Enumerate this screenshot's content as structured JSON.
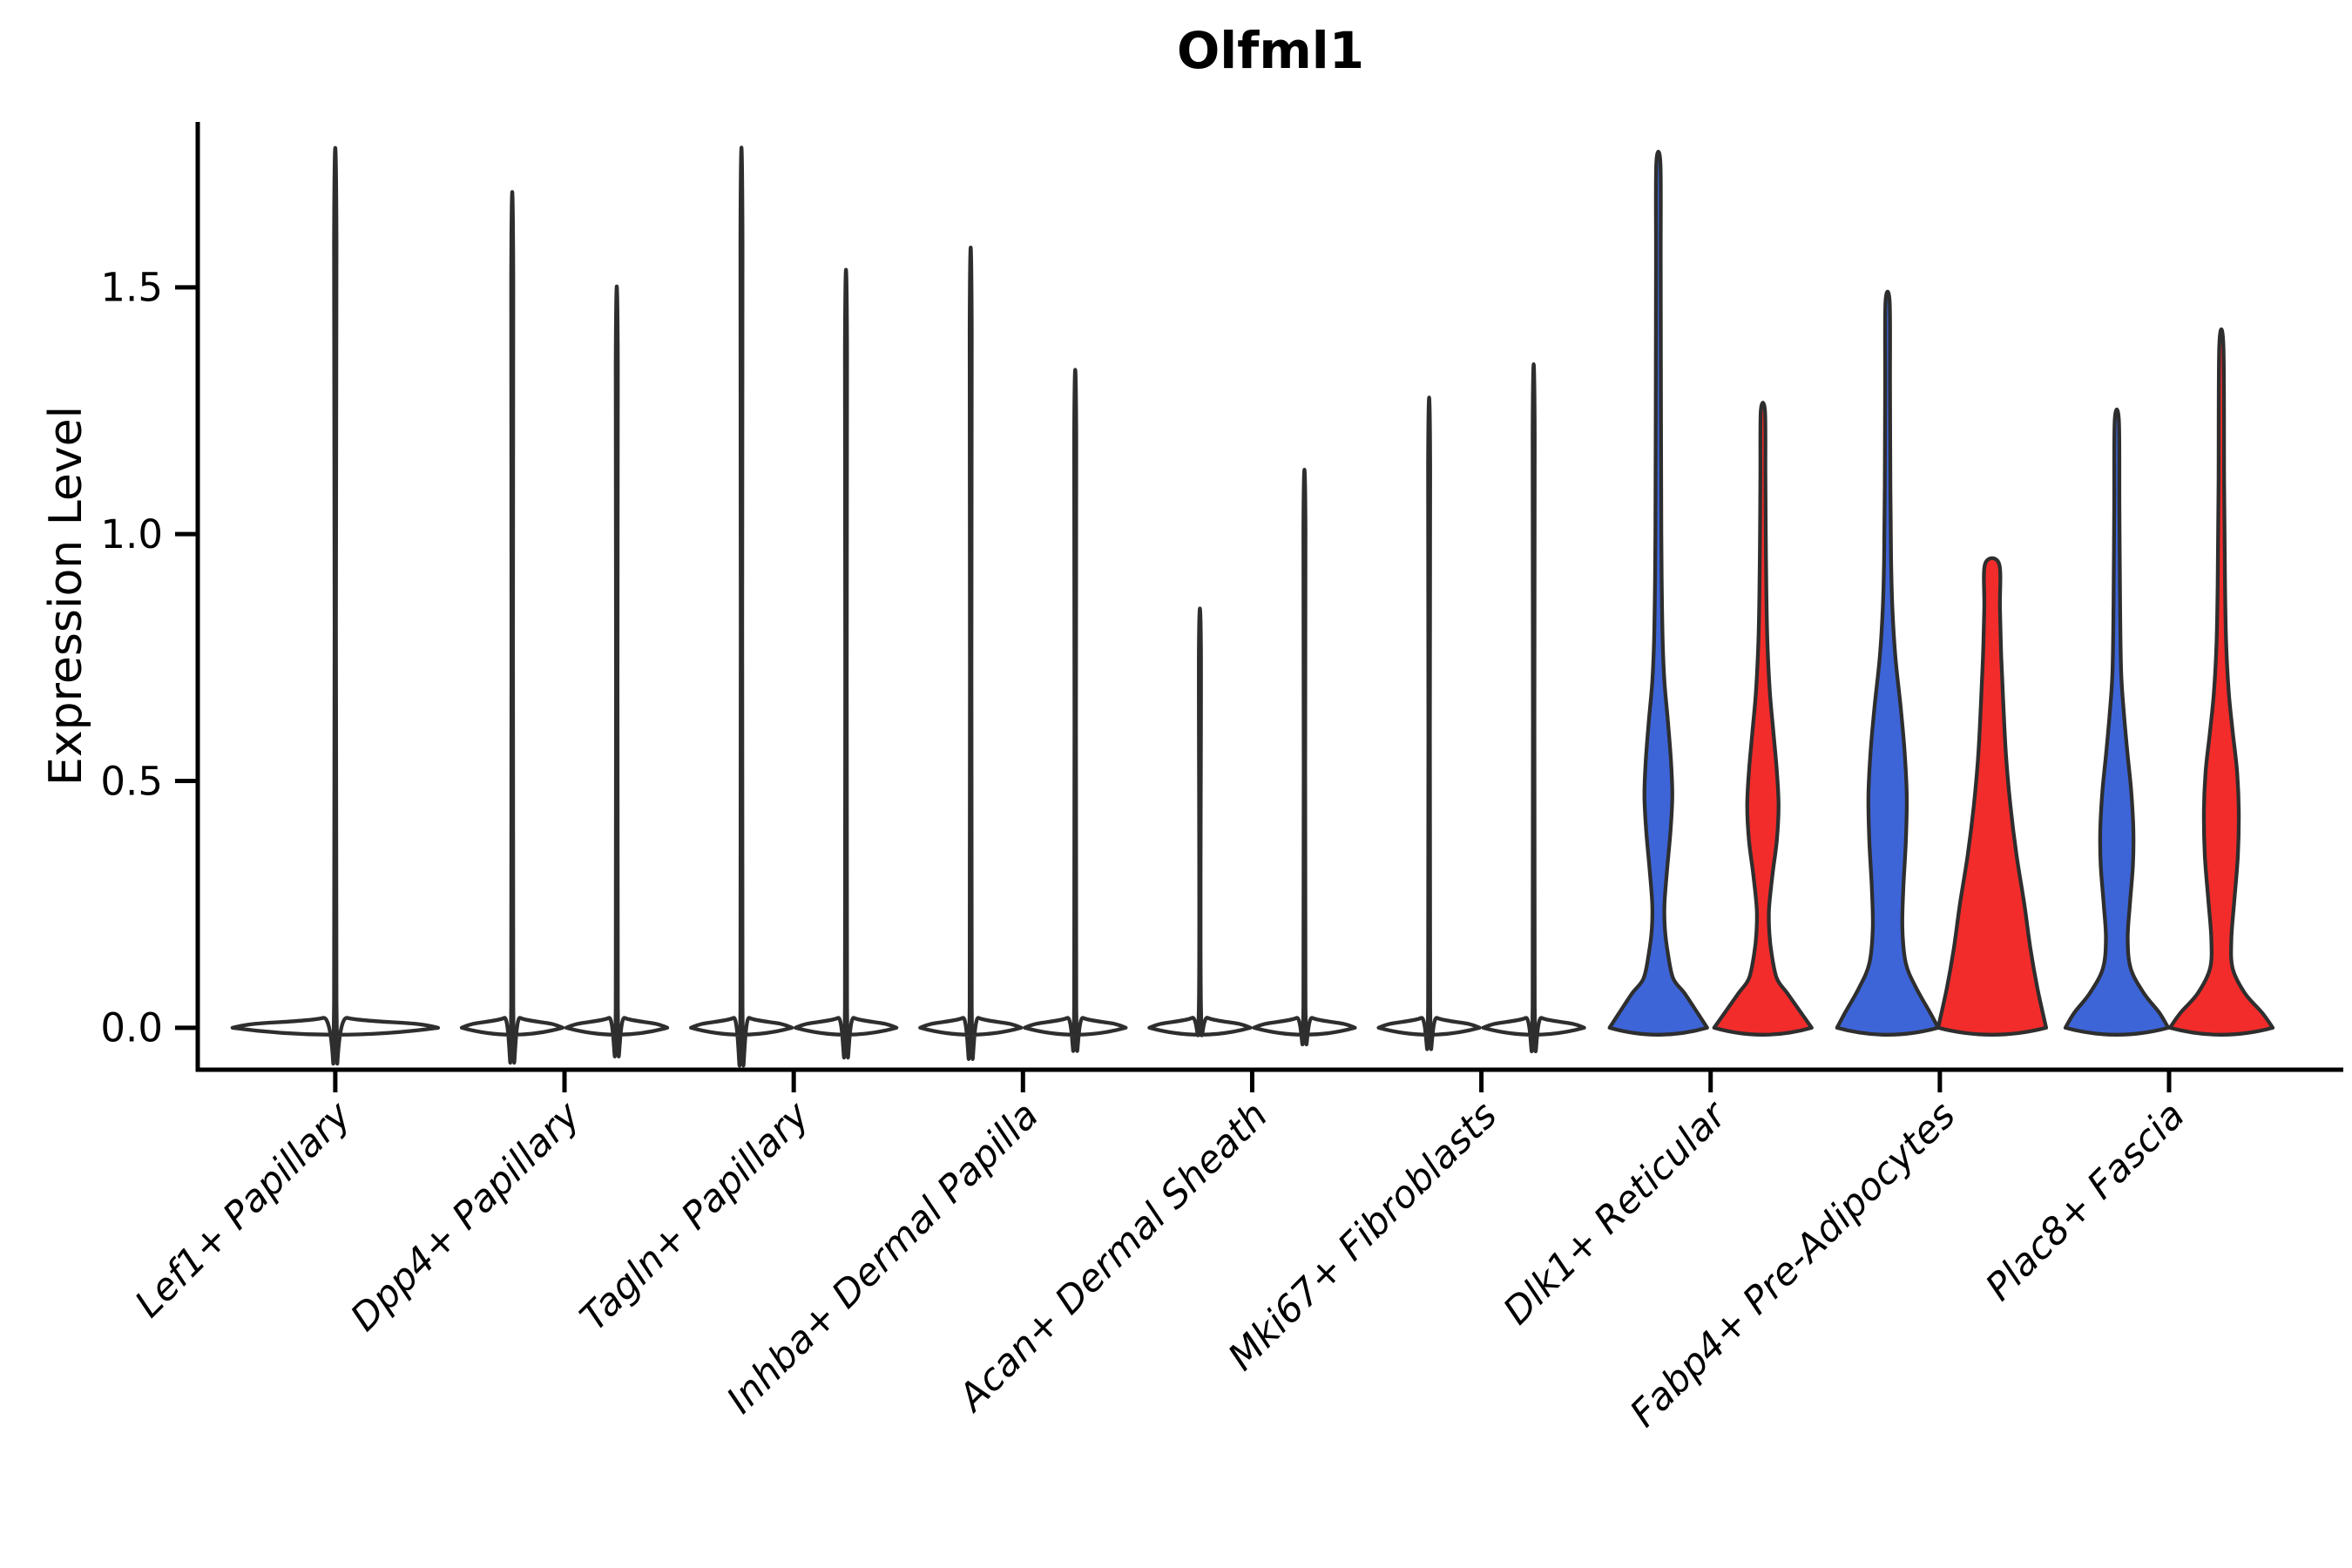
{
  "chart_data": {
    "type": "violin",
    "title": "Olfml1",
    "ylabel": "Expression Level",
    "xlabel": "",
    "grid": false,
    "legend": "none",
    "background_color": "#FFFFFF",
    "axis_color": "#000000",
    "outline_color": "#2E2E2E",
    "group_colors": {
      "left": "#3D65D8",
      "right": "#F22C2B"
    },
    "ylim": [
      -0.085,
      1.835
    ],
    "yticks": [
      {
        "value": 0.0,
        "label": "0.0"
      },
      {
        "value": 0.5,
        "label": "0.5"
      },
      {
        "value": 1.0,
        "label": "1.0"
      },
      {
        "value": 1.5,
        "label": "1.5"
      }
    ],
    "categories": [
      "Lef1+ Papillary",
      "Dpp4+ Papillary",
      "Tagln+ Papillary",
      "Inhba+ Dermal Papilla",
      "Acan+ Dermal Sheath",
      "Mki67+ Fibroblasts",
      "Dlk1+ Reticular",
      "Fabp4+ Pre-Adipocytes",
      "Plac8+ Fascia"
    ],
    "violins": [
      {
        "category_index": 0,
        "side": "single",
        "fill": "#FFFFFF",
        "max_expression": 1.59,
        "flat_top": false,
        "profile": [
          [
            0,
            118
          ],
          [
            0.008,
            92
          ],
          [
            0.02,
            14
          ],
          [
            0.05,
            1.4
          ],
          [
            1.59,
            1.4
          ]
        ]
      },
      {
        "category_index": 1,
        "side": "left",
        "fill": "#FFFFFF",
        "max_expression": 1.51,
        "flat_top": false,
        "profile": [
          [
            0,
            58
          ],
          [
            0.008,
            45
          ],
          [
            0.02,
            9
          ],
          [
            0.045,
            1.2
          ],
          [
            1.51,
            1.2
          ]
        ]
      },
      {
        "category_index": 1,
        "side": "right",
        "fill": "#FFFFFF",
        "max_expression": 1.34,
        "flat_top": false,
        "profile": [
          [
            0,
            58
          ],
          [
            0.008,
            45
          ],
          [
            0.02,
            9
          ],
          [
            0.045,
            1.2
          ],
          [
            1.34,
            1.2
          ]
        ]
      },
      {
        "category_index": 2,
        "side": "left",
        "fill": "#FFFFFF",
        "max_expression": 1.59,
        "flat_top": false,
        "profile": [
          [
            0,
            58
          ],
          [
            0.008,
            45
          ],
          [
            0.02,
            9
          ],
          [
            0.045,
            1.2
          ],
          [
            1.59,
            1.2
          ]
        ]
      },
      {
        "category_index": 2,
        "side": "right",
        "fill": "#FFFFFF",
        "max_expression": 1.37,
        "flat_top": false,
        "profile": [
          [
            0,
            58
          ],
          [
            0.008,
            45
          ],
          [
            0.02,
            9
          ],
          [
            0.045,
            1.2
          ],
          [
            1.37,
            1.2
          ]
        ]
      },
      {
        "category_index": 3,
        "side": "left",
        "fill": "#FFFFFF",
        "max_expression": 1.41,
        "flat_top": false,
        "profile": [
          [
            0,
            58
          ],
          [
            0.008,
            45
          ],
          [
            0.02,
            9
          ],
          [
            0.045,
            1.2
          ],
          [
            1.41,
            1.2
          ]
        ]
      },
      {
        "category_index": 3,
        "side": "right",
        "fill": "#FFFFFF",
        "max_expression": 1.19,
        "flat_top": false,
        "profile": [
          [
            0,
            58
          ],
          [
            0.008,
            45
          ],
          [
            0.02,
            9
          ],
          [
            0.045,
            1.2
          ],
          [
            1.19,
            1.2
          ]
        ]
      },
      {
        "category_index": 4,
        "side": "left",
        "fill": "#FFFFFF",
        "max_expression": 0.76,
        "flat_top": false,
        "profile": [
          [
            0,
            58
          ],
          [
            0.008,
            45
          ],
          [
            0.02,
            9
          ],
          [
            0.045,
            1.2
          ],
          [
            0.76,
            1.2
          ]
        ]
      },
      {
        "category_index": 4,
        "side": "right",
        "fill": "#FFFFFF",
        "max_expression": 1.01,
        "flat_top": false,
        "profile": [
          [
            0,
            58
          ],
          [
            0.008,
            45
          ],
          [
            0.02,
            9
          ],
          [
            0.045,
            1.2
          ],
          [
            1.01,
            1.2
          ]
        ]
      },
      {
        "category_index": 5,
        "side": "left",
        "fill": "#FFFFFF",
        "max_expression": 1.14,
        "flat_top": false,
        "profile": [
          [
            0,
            58
          ],
          [
            0.008,
            45
          ],
          [
            0.02,
            9
          ],
          [
            0.045,
            1.2
          ],
          [
            1.14,
            1.2
          ]
        ]
      },
      {
        "category_index": 5,
        "side": "right",
        "fill": "#FFFFFF",
        "max_expression": 1.2,
        "flat_top": false,
        "profile": [
          [
            0,
            58
          ],
          [
            0.008,
            45
          ],
          [
            0.02,
            9
          ],
          [
            0.045,
            1.2
          ],
          [
            1.2,
            1.2
          ]
        ]
      },
      {
        "category_index": 6,
        "side": "left",
        "fill": "#3D65D8",
        "max_expression": 1.75,
        "flat_top": false,
        "profile": [
          [
            0,
            56
          ],
          [
            0.03,
            45
          ],
          [
            0.07,
            30
          ],
          [
            0.1,
            17
          ],
          [
            0.15,
            11
          ],
          [
            0.2,
            7.5
          ],
          [
            0.25,
            7
          ],
          [
            0.32,
            10
          ],
          [
            0.4,
            14
          ],
          [
            0.47,
            16
          ],
          [
            0.54,
            14.5
          ],
          [
            0.62,
            11
          ],
          [
            0.7,
            7
          ],
          [
            0.78,
            5
          ],
          [
            0.88,
            4
          ],
          [
            1.0,
            3.4
          ],
          [
            1.25,
            3
          ],
          [
            1.55,
            2.7
          ],
          [
            1.75,
            2.4
          ]
        ]
      },
      {
        "category_index": 6,
        "side": "right",
        "fill": "#F22C2B",
        "max_expression": 1.25,
        "flat_top": false,
        "profile": [
          [
            0,
            56
          ],
          [
            0.03,
            44
          ],
          [
            0.07,
            28
          ],
          [
            0.1,
            16
          ],
          [
            0.15,
            10
          ],
          [
            0.19,
            7.5
          ],
          [
            0.24,
            7
          ],
          [
            0.31,
            11
          ],
          [
            0.38,
            16
          ],
          [
            0.45,
            18
          ],
          [
            0.52,
            16
          ],
          [
            0.6,
            12
          ],
          [
            0.68,
            8
          ],
          [
            0.78,
            5.2
          ],
          [
            0.88,
            4
          ],
          [
            1.0,
            3.3
          ],
          [
            1.12,
            2.9
          ],
          [
            1.25,
            2.4
          ]
        ]
      },
      {
        "category_index": 7,
        "side": "left",
        "fill": "#3D65D8",
        "max_expression": 1.47,
        "flat_top": false,
        "profile": [
          [
            0,
            58
          ],
          [
            0.03,
            49
          ],
          [
            0.08,
            33
          ],
          [
            0.13,
            21
          ],
          [
            0.2,
            17
          ],
          [
            0.28,
            18
          ],
          [
            0.38,
            21
          ],
          [
            0.47,
            22
          ],
          [
            0.56,
            19.5
          ],
          [
            0.65,
            15
          ],
          [
            0.75,
            9
          ],
          [
            0.85,
            5.5
          ],
          [
            0.95,
            4
          ],
          [
            1.1,
            3.2
          ],
          [
            1.3,
            2.8
          ],
          [
            1.47,
            2.4
          ]
        ]
      },
      {
        "category_index": 7,
        "side": "right",
        "fill": "#F22C2B",
        "max_expression": 0.94,
        "flat_top": true,
        "profile": [
          [
            0,
            62
          ],
          [
            0.08,
            52
          ],
          [
            0.16,
            44
          ],
          [
            0.25,
            37
          ],
          [
            0.35,
            28
          ],
          [
            0.45,
            21
          ],
          [
            0.55,
            16
          ],
          [
            0.65,
            13
          ],
          [
            0.75,
            10.5
          ],
          [
            0.85,
            9
          ],
          [
            0.94,
            8
          ]
        ]
      },
      {
        "category_index": 8,
        "side": "left",
        "fill": "#3D65D8",
        "max_expression": 1.23,
        "flat_top": false,
        "profile": [
          [
            0,
            59
          ],
          [
            0.03,
            49
          ],
          [
            0.07,
            31
          ],
          [
            0.12,
            16
          ],
          [
            0.18,
            12.5
          ],
          [
            0.25,
            15
          ],
          [
            0.33,
            18.5
          ],
          [
            0.4,
            19
          ],
          [
            0.48,
            16.5
          ],
          [
            0.56,
            12
          ],
          [
            0.64,
            8
          ],
          [
            0.72,
            5
          ],
          [
            0.85,
            3.8
          ],
          [
            1.05,
            3
          ],
          [
            1.23,
            2.4
          ]
        ]
      },
      {
        "category_index": 8,
        "side": "right",
        "fill": "#F22C2B",
        "max_expression": 1.38,
        "flat_top": false,
        "profile": [
          [
            0,
            59
          ],
          [
            0.03,
            47
          ],
          [
            0.07,
            27
          ],
          [
            0.12,
            13
          ],
          [
            0.18,
            11.5
          ],
          [
            0.26,
            15
          ],
          [
            0.35,
            19
          ],
          [
            0.44,
            20
          ],
          [
            0.52,
            18
          ],
          [
            0.6,
            13
          ],
          [
            0.68,
            8.5
          ],
          [
            0.78,
            5.5
          ],
          [
            0.9,
            4.2
          ],
          [
            1.1,
            3.2
          ],
          [
            1.38,
            2.4
          ]
        ]
      }
    ]
  }
}
